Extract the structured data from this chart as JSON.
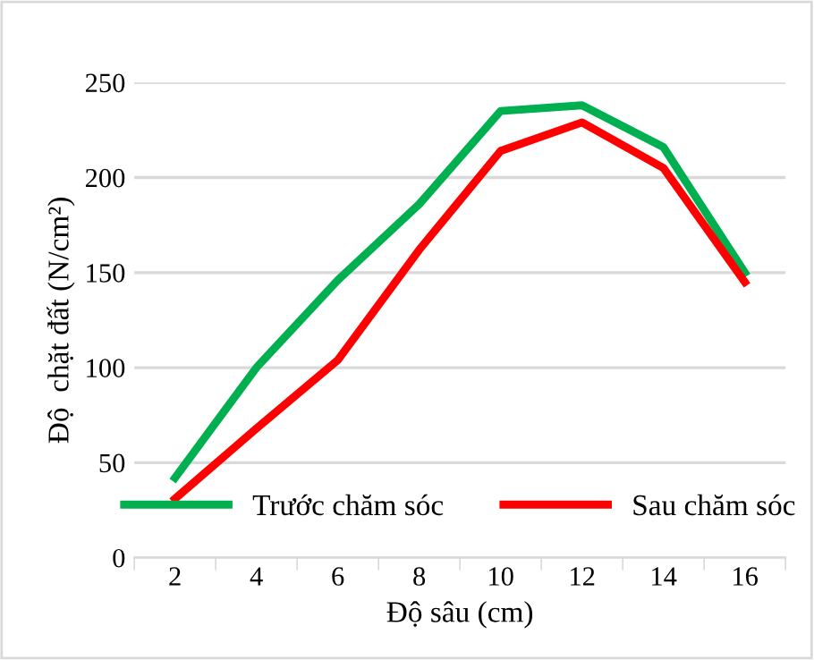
{
  "chart_data": {
    "type": "line",
    "xlabel": "Độ sâu (cm)",
    "ylabel": "Độ  chặt đất (N/cm²)",
    "categories": [
      "2",
      "4",
      "6",
      "8",
      "10",
      "12",
      "14",
      "16"
    ],
    "series": [
      {
        "name": "Trước chăm sóc",
        "color": "#00b050",
        "values": [
          42,
          100,
          146,
          186,
          235,
          238,
          216,
          150
        ]
      },
      {
        "name": "Sau chăm sóc",
        "color": "#ff0000",
        "values": [
          31,
          68,
          104,
          162,
          214,
          229,
          205,
          145
        ]
      }
    ],
    "ylim": [
      0,
      250
    ],
    "yticks": [
      0,
      50,
      100,
      150,
      200,
      250
    ],
    "grid": "y",
    "legend": "bottom",
    "marker": "none",
    "line_style": "solid"
  }
}
